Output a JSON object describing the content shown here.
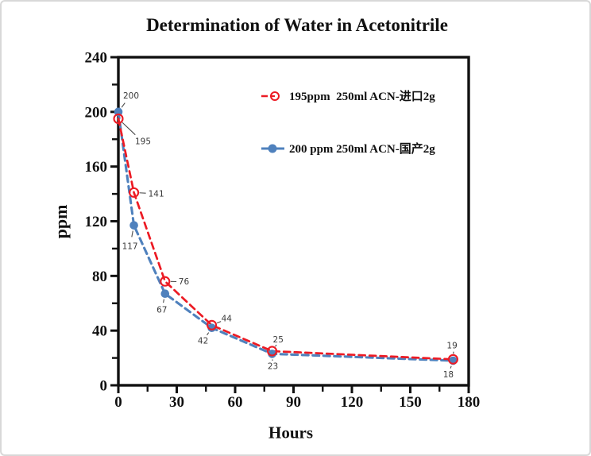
{
  "chart_data": {
    "type": "line",
    "title": "Determination of Water in Acetonitrile",
    "xlabel": "Hours",
    "ylabel": "ppm",
    "xlim": [
      0,
      180
    ],
    "ylim": [
      0,
      240
    ],
    "x_major_ticks": [
      0,
      30,
      60,
      90,
      120,
      150,
      180
    ],
    "x_minor_ticks": [
      15,
      45,
      75,
      105,
      135,
      165
    ],
    "y_major_ticks": [
      0,
      40,
      80,
      120,
      160,
      200,
      240
    ],
    "y_minor_ticks": [
      20,
      60,
      100,
      140,
      180,
      220
    ],
    "grid": false,
    "frame": "box",
    "legend_position": "inside-top",
    "point_labels_visible": true,
    "series": [
      {
        "name": "195ppm  250ml ACN-进口2g",
        "color": "#ec1b24",
        "line_style": "dashed",
        "marker": "open-circle",
        "x": [
          0,
          8,
          24,
          48,
          79,
          172
        ],
        "y": [
          195,
          141,
          76,
          44,
          25,
          19
        ]
      },
      {
        "name": "200 ppm 250ml ACN-国产2g",
        "color": "#4f81bd",
        "line_style": "dashed",
        "marker": "filled-circle",
        "x": [
          0,
          8,
          24,
          48,
          79,
          172
        ],
        "y": [
          200,
          117,
          67,
          42,
          23,
          18
        ]
      }
    ],
    "axis_color": "#111111",
    "point_label_color": "#3a3a3a"
  }
}
